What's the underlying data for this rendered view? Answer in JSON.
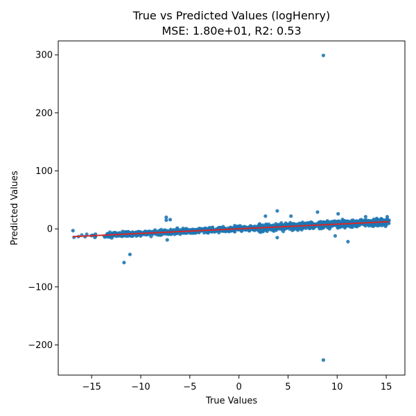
{
  "chart_data": {
    "type": "scatter",
    "title": "True vs Predicted Values (logHenry)",
    "subtitle": "MSE: 1.80e+01, R2: 0.53",
    "xlabel": "True Values",
    "ylabel": "Predicted Values",
    "xlim": [
      -18.4,
      16.9
    ],
    "ylim": [
      -252,
      324
    ],
    "xticks": [
      -15,
      -10,
      -5,
      0,
      5,
      10,
      15
    ],
    "xtick_labels": [
      "−15",
      "−10",
      "−5",
      "0",
      "5",
      "10",
      "15"
    ],
    "yticks": [
      -200,
      -100,
      0,
      100,
      200,
      300
    ],
    "ytick_labels": [
      "−200",
      "−100",
      "0",
      "100",
      "200",
      "300"
    ],
    "grid": false,
    "colors": {
      "points": "#1f77b4",
      "fit_line": "#d62728"
    },
    "outliers": [
      {
        "x": 8.6,
        "y": 299
      },
      {
        "x": 8.6,
        "y": -226
      },
      {
        "x": -11.7,
        "y": -58
      },
      {
        "x": -11.1,
        "y": -44
      },
      {
        "x": 11.1,
        "y": -22
      },
      {
        "x": -7.4,
        "y": 20
      },
      {
        "x": -7.4,
        "y": 15
      },
      {
        "x": -7.0,
        "y": 16
      },
      {
        "x": -7.3,
        "y": -19
      },
      {
        "x": 3.9,
        "y": 31
      },
      {
        "x": 3.9,
        "y": -15
      },
      {
        "x": 8.0,
        "y": 29
      },
      {
        "x": 10.1,
        "y": 26
      },
      {
        "x": 9.8,
        "y": -12
      },
      {
        "x": -16.9,
        "y": -3
      },
      {
        "x": 2.7,
        "y": 22
      },
      {
        "x": 5.3,
        "y": 22
      },
      {
        "x": 12.9,
        "y": 21
      },
      {
        "x": 15.1,
        "y": 21
      }
    ],
    "fit_line": {
      "slope": 0.8,
      "intercept": 0.2,
      "x_range": [
        -16.9,
        15.3
      ]
    }
  }
}
